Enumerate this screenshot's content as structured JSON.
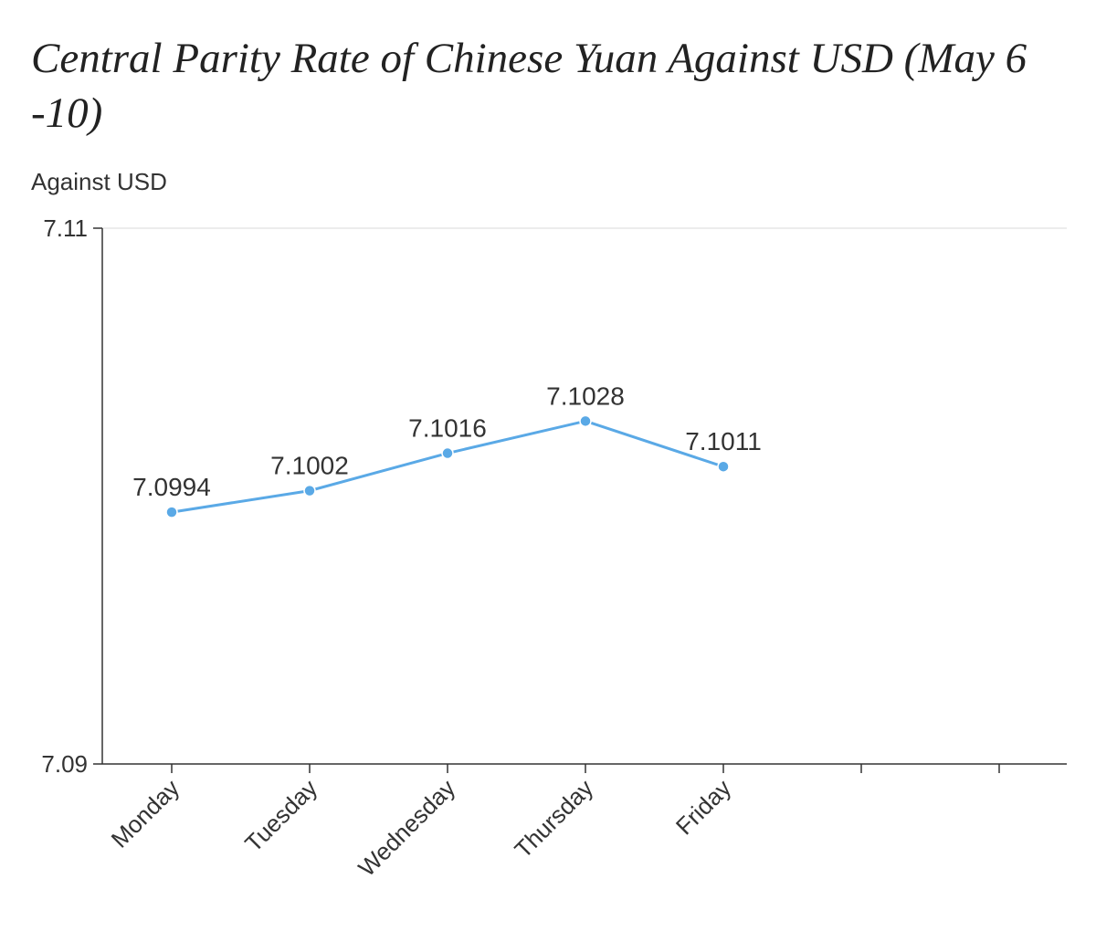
{
  "chart_data": {
    "type": "line",
    "title": "Central Parity Rate of Chinese Yuan Against USD (May 6 -10)",
    "ylabel": "Against USD",
    "xlabel": "",
    "categories": [
      "Monday",
      "Tuesday",
      "Wednesday",
      "Thursday",
      "Friday"
    ],
    "slots": 7,
    "series": [
      {
        "values": [
          7.0994,
          7.1002,
          7.1016,
          7.1028,
          7.1011
        ],
        "color": "#5aa9e6"
      }
    ],
    "data_labels": [
      "7.0994",
      "7.1002",
      "7.1016",
      "7.1028",
      "7.1011"
    ],
    "ylim": [
      7.09,
      7.11
    ],
    "y_ticks": [
      7.09,
      7.11
    ],
    "y_tick_labels": [
      "7.09",
      "7.11"
    ],
    "grid": "horizontal at top",
    "legend": "none"
  }
}
